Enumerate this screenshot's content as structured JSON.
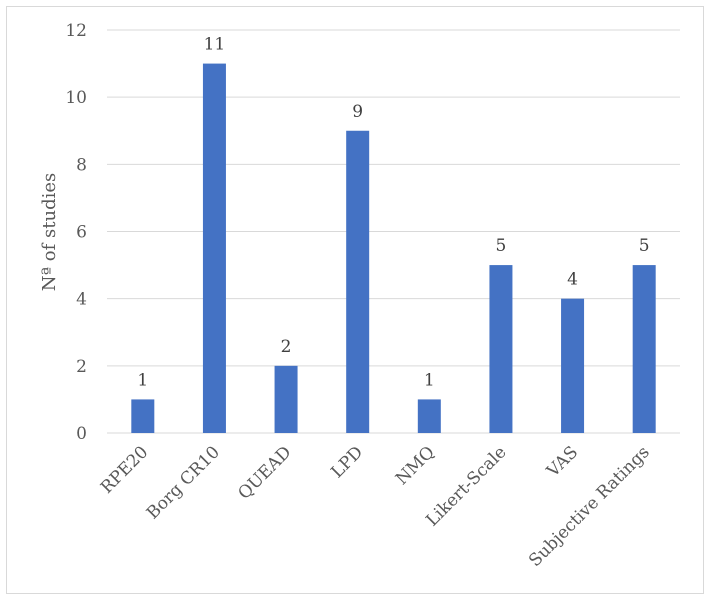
{
  "chart_data": {
    "type": "bar",
    "categories": [
      "RPE20",
      "Borg CR10",
      "QUEAD",
      "LPD",
      "NMQ",
      "Likert-Scale",
      "VAS",
      "Subjective Ratings"
    ],
    "values": [
      1,
      11,
      2,
      9,
      1,
      5,
      4,
      5
    ],
    "data_labels": [
      "1",
      "11",
      "2",
      "9",
      "1",
      "5",
      "4",
      "5"
    ],
    "ylabel": "Nª of studies",
    "xlabel": "",
    "ylim": [
      0,
      12
    ],
    "yticks": [
      "0",
      "2",
      "4",
      "6",
      "8",
      "10",
      "12"
    ],
    "grid": true,
    "legend": "none",
    "bar_color": "#4472C4",
    "grid_color": "#d9d9d9"
  }
}
